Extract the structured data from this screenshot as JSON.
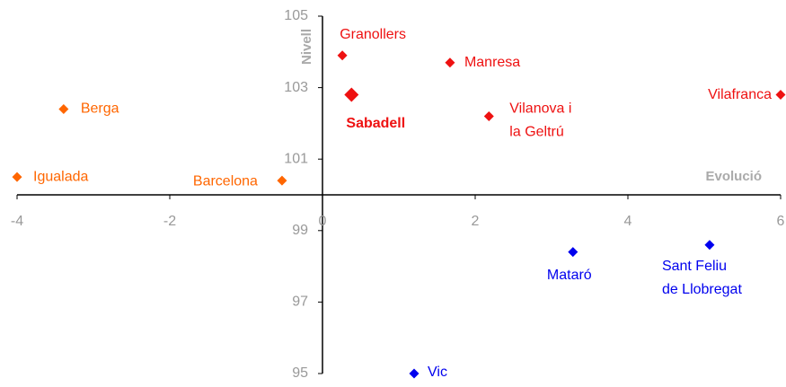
{
  "chart_data": {
    "type": "scatter",
    "x_label": "Evolució",
    "y_label": "Nivell",
    "xlim": [
      -4,
      6
    ],
    "ylim": [
      95,
      105
    ],
    "xticks": [
      -4,
      -2,
      0,
      2,
      4,
      6
    ],
    "yticks": [
      95,
      97,
      99,
      101,
      103,
      105
    ],
    "series": [
      {
        "color": "#ee1111",
        "x": [
          0.26,
          1.67,
          2.18,
          6.0
        ],
        "values": [
          103.9,
          103.7,
          102.2,
          102.8
        ],
        "labels": [
          [
            "Granollers"
          ],
          [
            "Manresa"
          ],
          [
            "Vilanova i",
            "la Geltrú"
          ],
          [
            "Vilafranca"
          ]
        ]
      },
      {
        "color": "#ee1111",
        "highlight": true,
        "x": [
          0.38
        ],
        "values": [
          102.8
        ],
        "labels": [
          [
            "Sabadell"
          ]
        ]
      },
      {
        "color": "#ff6600",
        "x": [
          -3.39,
          -4.0,
          -0.53
        ],
        "values": [
          102.4,
          100.5,
          100.4
        ],
        "labels": [
          [
            "Berga"
          ],
          [
            "Igualada"
          ],
          [
            "Barcelona"
          ]
        ]
      },
      {
        "color": "#0000ee",
        "x": [
          3.28,
          5.07,
          1.2
        ],
        "values": [
          98.4,
          98.6,
          95.0
        ],
        "labels": [
          [
            "Mataró"
          ],
          [
            "Sant Feliu",
            "de Llobregat"
          ],
          [
            "Vic"
          ]
        ]
      }
    ]
  }
}
